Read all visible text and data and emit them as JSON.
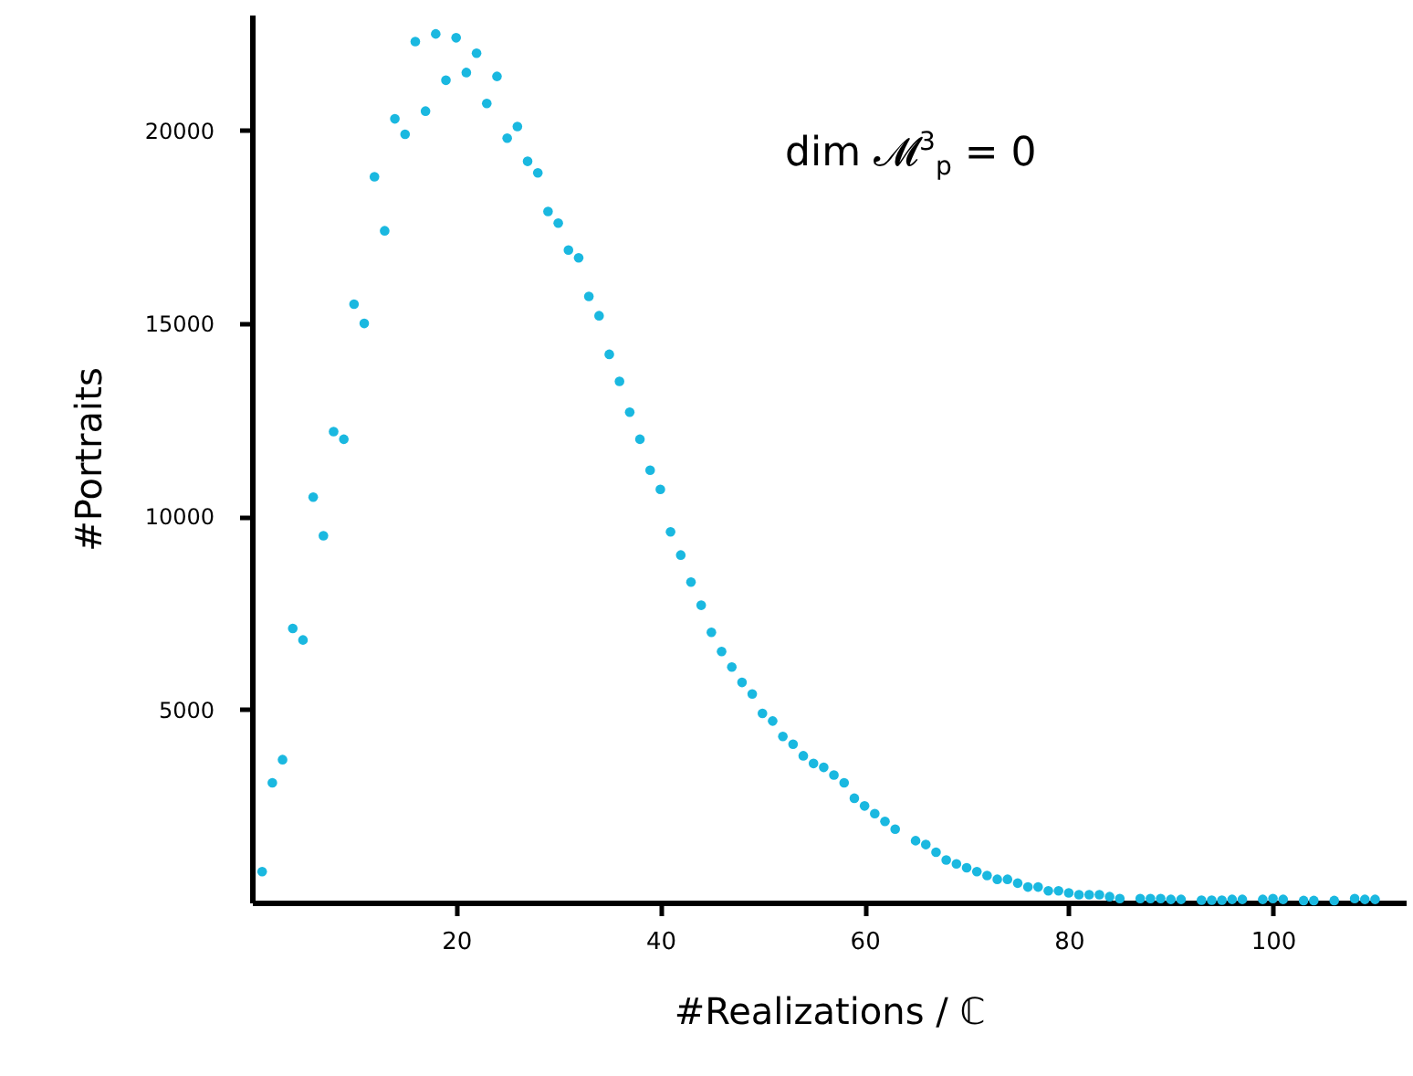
{
  "chart_data": {
    "type": "scatter",
    "xlabel": "#Realizations / ℂ",
    "ylabel": "#Portraits",
    "annotations": [
      "dim 𝓜$^{3}$$_{p}$ = 0"
    ],
    "x": [
      1,
      2,
      3,
      4,
      5,
      6,
      7,
      8,
      9,
      10,
      11,
      12,
      13,
      14,
      15,
      16,
      17,
      18,
      19,
      20,
      21,
      22,
      23,
      24,
      25,
      26,
      27,
      28,
      29,
      30,
      31,
      32,
      33,
      34,
      35,
      36,
      37,
      38,
      39,
      40,
      41,
      42,
      43,
      44,
      45,
      46,
      47,
      48,
      49,
      50,
      51,
      52,
      53,
      54,
      55,
      56,
      57,
      58,
      59,
      60,
      61,
      62,
      63,
      65,
      66,
      67,
      68,
      69,
      70,
      71,
      72,
      73,
      74,
      75,
      76,
      77,
      78,
      79,
      80,
      81,
      82,
      83,
      84,
      85,
      87,
      88,
      89,
      90,
      91,
      93,
      94,
      95,
      96,
      97,
      99,
      100,
      101,
      103,
      104,
      106,
      108,
      109,
      110
    ],
    "series": [
      {
        "color": "#1ab8e0",
        "values": [
          800,
          3100,
          3700,
          7100,
          6800,
          10500,
          9500,
          12200,
          12000,
          15500,
          15000,
          18800,
          17400,
          20300,
          19900,
          22300,
          20500,
          22500,
          21300,
          22400,
          21500,
          22000,
          20700,
          21400,
          19800,
          20100,
          19200,
          18900,
          17900,
          17600,
          16900,
          16700,
          15700,
          15200,
          14200,
          13500,
          12700,
          12000,
          11200,
          10700,
          9600,
          9000,
          8300,
          7700,
          7000,
          6500,
          6100,
          5700,
          5400,
          4900,
          4700,
          4300,
          4100,
          3800,
          3600,
          3500,
          3300,
          3100,
          2700,
          2500,
          2300,
          2100,
          1900,
          1600,
          1500,
          1300,
          1100,
          1000,
          900,
          800,
          700,
          600,
          600,
          500,
          400,
          400,
          300,
          300,
          250,
          200,
          200,
          200,
          150,
          100,
          100,
          100,
          100,
          80,
          80,
          60,
          60,
          60,
          80,
          80,
          80,
          100,
          80,
          50,
          50,
          50,
          100,
          80,
          80
        ]
      }
    ],
    "xlim": [
      0,
      113
    ],
    "ylim": [
      0,
      23000
    ],
    "xticks": [
      20,
      40,
      60,
      80,
      100
    ],
    "yticks": [
      5000,
      10000,
      15000,
      20000
    ],
    "marker": "circle",
    "grid": false
  }
}
